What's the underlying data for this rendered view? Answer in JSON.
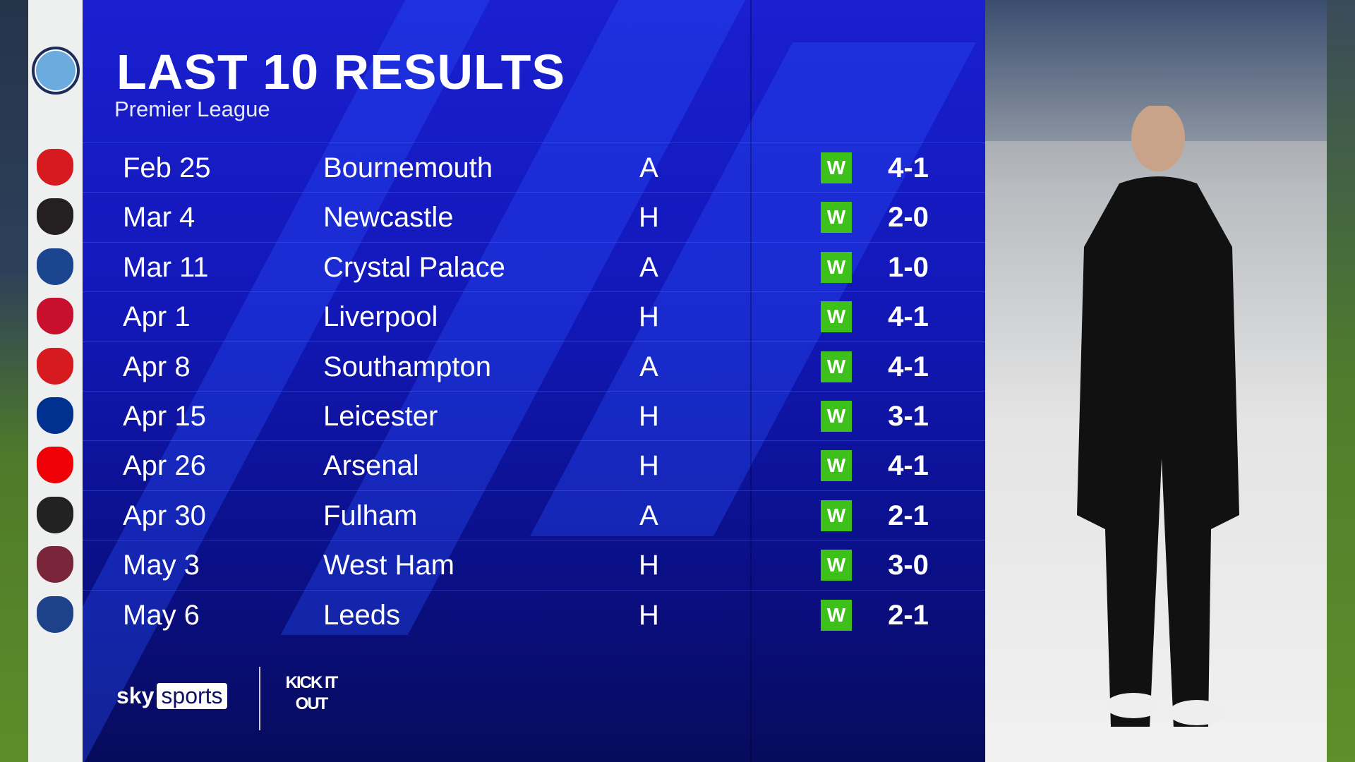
{
  "header": {
    "title": "LAST 10 RESULTS",
    "subtitle": "Premier League",
    "team_crest": "manchester-city-crest"
  },
  "results": [
    {
      "date": "Feb 25",
      "opponent": "Bournemouth",
      "venue": "A",
      "result": "W",
      "score": "4-1",
      "crest_color": "#d71920"
    },
    {
      "date": "Mar 4",
      "opponent": "Newcastle",
      "venue": "H",
      "result": "W",
      "score": "2-0",
      "crest_color": "#241f20"
    },
    {
      "date": "Mar 11",
      "opponent": "Crystal Palace",
      "venue": "A",
      "result": "W",
      "score": "1-0",
      "crest_color": "#1b458f"
    },
    {
      "date": "Apr 1",
      "opponent": "Liverpool",
      "venue": "H",
      "result": "W",
      "score": "4-1",
      "crest_color": "#c8102e"
    },
    {
      "date": "Apr 8",
      "opponent": "Southampton",
      "venue": "A",
      "result": "W",
      "score": "4-1",
      "crest_color": "#d71920"
    },
    {
      "date": "Apr 15",
      "opponent": "Leicester",
      "venue": "H",
      "result": "W",
      "score": "3-1",
      "crest_color": "#003090"
    },
    {
      "date": "Apr 26",
      "opponent": "Arsenal",
      "venue": "H",
      "result": "W",
      "score": "4-1",
      "crest_color": "#ef0107"
    },
    {
      "date": "Apr 30",
      "opponent": "Fulham",
      "venue": "A",
      "result": "W",
      "score": "2-1",
      "crest_color": "#222222"
    },
    {
      "date": "May 3",
      "opponent": "West Ham",
      "venue": "H",
      "result": "W",
      "score": "3-0",
      "crest_color": "#7a263a"
    },
    {
      "date": "May 6",
      "opponent": "Leeds",
      "venue": "H",
      "result": "W",
      "score": "2-1",
      "crest_color": "#1d428a"
    }
  ],
  "footer": {
    "broadcaster_a": "sky",
    "broadcaster_b": "sports",
    "campaign_logo": "KICK IT OUT"
  },
  "colors": {
    "panel": "#1218b8",
    "win": "#3dc11a"
  }
}
